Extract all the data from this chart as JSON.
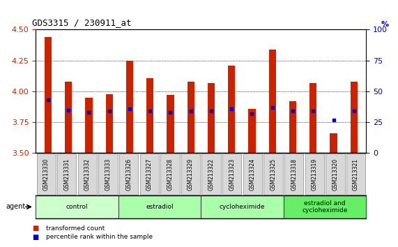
{
  "title": "GDS3315 / 230911_at",
  "samples": [
    "GSM213330",
    "GSM213331",
    "GSM213332",
    "GSM213333",
    "GSM213326",
    "GSM213327",
    "GSM213328",
    "GSM213329",
    "GSM213322",
    "GSM213323",
    "GSM213324",
    "GSM213325",
    "GSM213318",
    "GSM213319",
    "GSM213320",
    "GSM213321"
  ],
  "bar_tops": [
    4.44,
    4.08,
    3.95,
    3.98,
    4.25,
    4.11,
    3.97,
    4.08,
    4.07,
    4.21,
    3.86,
    4.34,
    3.92,
    4.07,
    3.66,
    4.08
  ],
  "bar_bottom": 3.5,
  "blue_dot_values": [
    3.93,
    3.85,
    3.83,
    3.84,
    3.86,
    3.84,
    3.83,
    3.84,
    3.84,
    3.86,
    3.82,
    3.87,
    3.84,
    3.84,
    3.77,
    3.84
  ],
  "ylim_left": [
    3.5,
    4.5
  ],
  "yticks_left": [
    3.5,
    3.75,
    4.0,
    4.25,
    4.5
  ],
  "yticks_right": [
    0,
    25,
    50,
    75,
    100
  ],
  "group_spans": [
    {
      "start": 0,
      "end": 3,
      "label": "control",
      "color": "#ccffcc"
    },
    {
      "start": 4,
      "end": 7,
      "label": "estradiol",
      "color": "#aaffaa"
    },
    {
      "start": 8,
      "end": 11,
      "label": "cycloheximide",
      "color": "#aaffaa"
    },
    {
      "start": 12,
      "end": 15,
      "label": "estradiol and\ncycloheximide",
      "color": "#66ee66"
    }
  ],
  "bar_color": "#cc2200",
  "dot_color": "#0000cc",
  "background_color": "#ffffff",
  "tick_color_left": "#cc2200",
  "tick_color_right": "#0000cc",
  "legend_items": [
    "transformed count",
    "percentile rank within the sample"
  ],
  "agent_label": "agent"
}
